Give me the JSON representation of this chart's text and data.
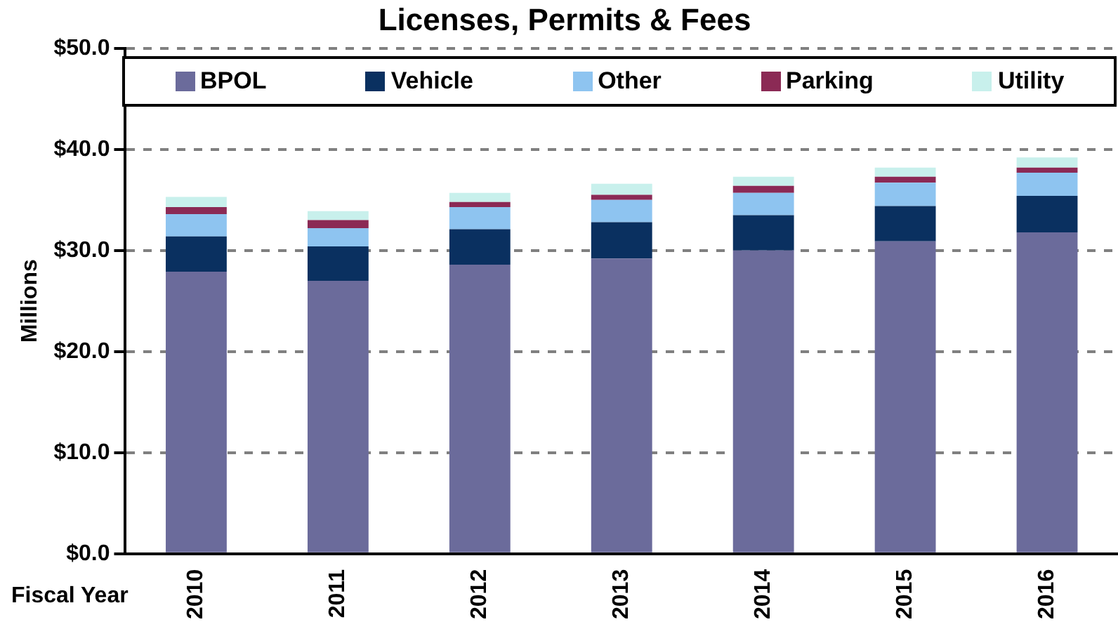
{
  "chart_data": {
    "type": "bar",
    "title": "Licenses, Permits & Fees",
    "xlabel": "Fiscal Year",
    "ylabel": "Millions",
    "categories": [
      "2010",
      "2011",
      "2012",
      "2013",
      "2014",
      "2015",
      "2016"
    ],
    "stacked": true,
    "series": [
      {
        "name": "BPOL",
        "color": "#6b6b9b",
        "values": [
          27.9,
          27.0,
          28.6,
          29.2,
          30.0,
          30.9,
          31.8
        ]
      },
      {
        "name": "Vehicle",
        "color": "#0a3060",
        "values": [
          3.5,
          3.4,
          3.5,
          3.6,
          3.5,
          3.5,
          3.6
        ]
      },
      {
        "name": "Other",
        "color": "#8ec4f0",
        "values": [
          2.2,
          1.8,
          2.2,
          2.2,
          2.2,
          2.3,
          2.3
        ]
      },
      {
        "name": "Parking",
        "color": "#8b2a55",
        "values": [
          0.7,
          0.8,
          0.5,
          0.5,
          0.7,
          0.6,
          0.5
        ]
      },
      {
        "name": "Utility",
        "color": "#c8f0ec",
        "values": [
          1.0,
          0.9,
          0.9,
          1.1,
          0.9,
          0.9,
          1.0
        ]
      }
    ],
    "ylim": [
      0,
      50
    ],
    "yticks": [
      {
        "value": 0,
        "label": "$0.0"
      },
      {
        "value": 10,
        "label": "$10.0"
      },
      {
        "value": 20,
        "label": "$20.0"
      },
      {
        "value": 30,
        "label": "$30.0"
      },
      {
        "value": 40,
        "label": "$40.0"
      },
      {
        "value": 50,
        "label": "$50.0"
      }
    ],
    "grid": "y",
    "legend": "top"
  }
}
